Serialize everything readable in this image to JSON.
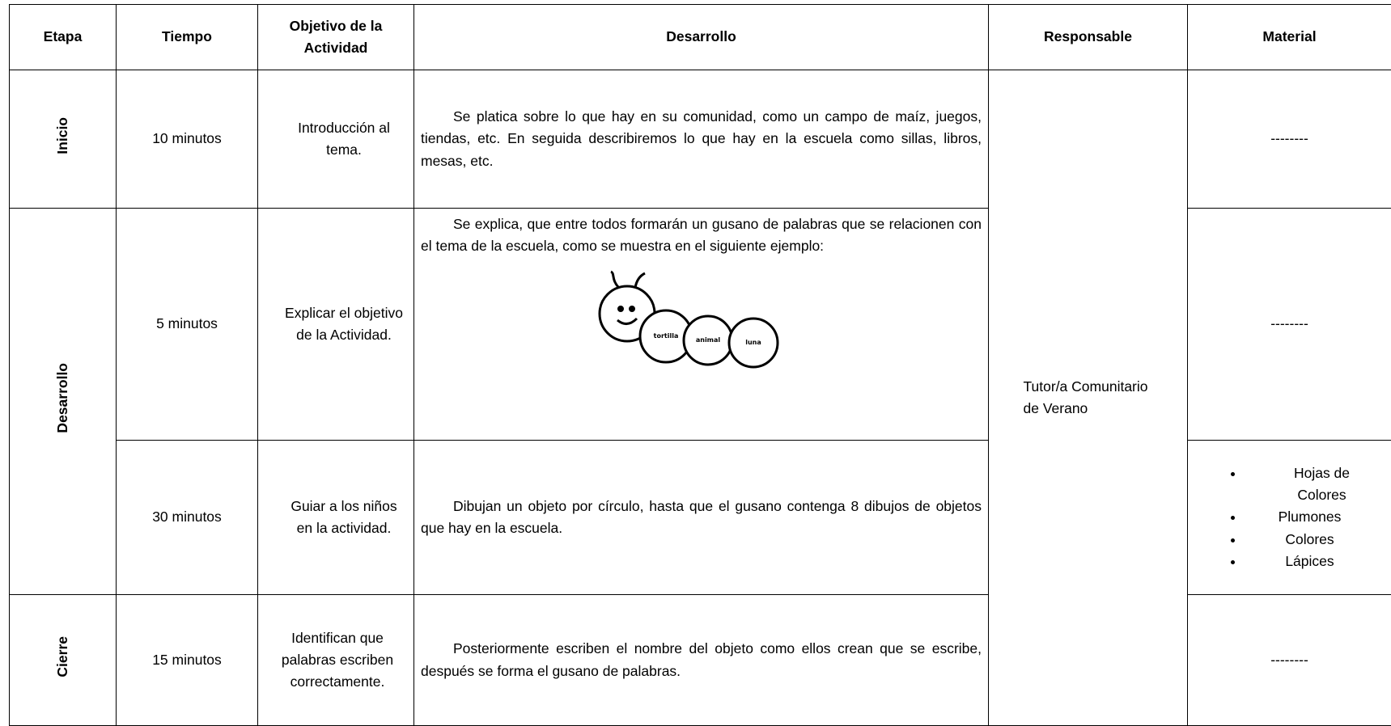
{
  "header": {
    "columns": [
      "Etapa",
      "Tiempo",
      "Objetivo de la Actividad",
      "Desarrollo",
      "Responsable",
      "Material"
    ]
  },
  "responsable": "Tutor/a Comunitario de Verano",
  "rows": [
    {
      "etapa": "Inicio",
      "tiempo": "10 minutos",
      "objetivo": "Introducción al tema.",
      "desarrollo": "Se platica sobre lo que hay en su comunidad, como un campo de maíz, juegos, tiendas, etc. En seguida describiremos lo que hay en la escuela como sillas, libros, mesas, etc.",
      "material": "--------"
    },
    {
      "etapa": "Desarrollo",
      "tiempo": "5 minutos",
      "objetivo": "Explicar el objetivo de la Actividad.",
      "desarrollo": "Se explica, que entre todos formarán un gusano de palabras que se relacionen con el tema de la escuela, como se muestra en el siguiente ejemplo:",
      "figure_labels": [
        "tortilla",
        "animal",
        "luna"
      ],
      "material": "--------"
    },
    {
      "tiempo": "30 minutos",
      "objetivo": "Guiar a los niños en la actividad.",
      "desarrollo": "Dibujan un objeto por círculo, hasta que el gusano contenga 8 dibujos de objetos que hay en la escuela.",
      "material_list": [
        "Hojas de Colores",
        "Plumones",
        "Colores",
        "Lápices"
      ]
    },
    {
      "etapa": "Cierre",
      "tiempo": "15 minutos",
      "objetivo": "Identifican que palabras escriben correctamente.",
      "desarrollo": "Posteriormente escriben el nombre del objeto como ellos crean que se escribe, después se forma el gusano de palabras.",
      "material": "--------"
    }
  ]
}
